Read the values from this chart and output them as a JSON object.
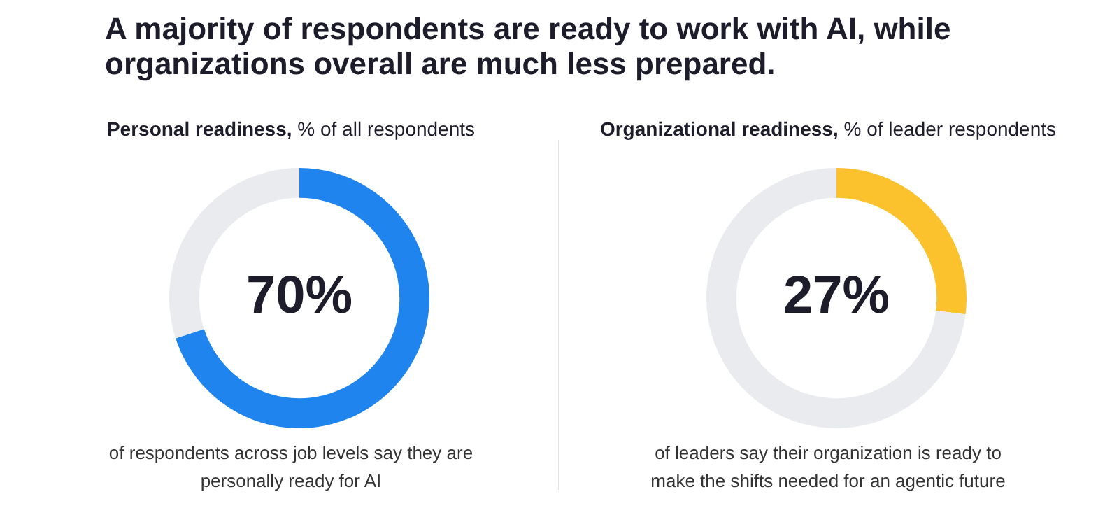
{
  "chart_data": [
    {
      "type": "donut",
      "title": "A majority of respondents are ready to work with AI, while organizations overall are much less prepared.",
      "subtitle": "Personal readiness, % of all respondents",
      "categories": [
        null,
        null
      ],
      "values": [
        70,
        30
      ],
      "colors": [
        "#1f84ee",
        "#e9ebee"
      ],
      "value_labels": [
        "70%",
        null
      ],
      "legend": false,
      "annotations": [
        "of respondents across job levels say they are personally ready for AI"
      ]
    },
    {
      "type": "donut",
      "subtitle": "Organizational readiness, % of leader respondents",
      "categories": [
        null,
        null
      ],
      "values": [
        27,
        73
      ],
      "colors": [
        "#fcc22e",
        "#e9ebee"
      ],
      "value_labels": [
        "27%",
        null
      ],
      "legend": false,
      "annotations": [
        "of leaders say their organization is ready to make the shifts needed for an agentic future"
      ]
    }
  ]
}
